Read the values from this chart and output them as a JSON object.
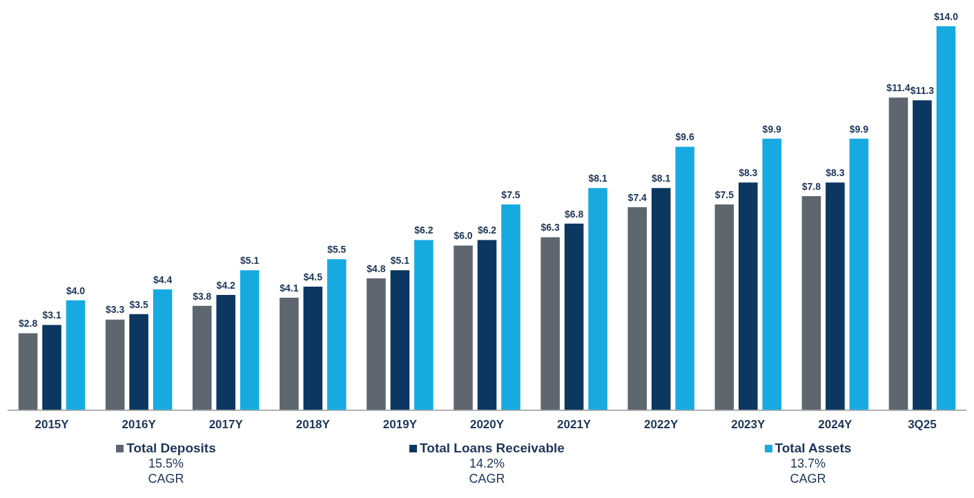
{
  "chart_data": {
    "type": "bar",
    "categories": [
      "2015Y",
      "2016Y",
      "2017Y",
      "2018Y",
      "2019Y",
      "2020Y",
      "2021Y",
      "2022Y",
      "2023Y",
      "2024Y",
      "3Q25"
    ],
    "series": [
      {
        "name": "Total Deposits",
        "color": "#5e6670",
        "values": [
          2.8,
          3.3,
          3.8,
          4.1,
          4.8,
          6.0,
          6.3,
          7.4,
          7.5,
          7.8,
          11.4
        ],
        "value_labels": [
          "$2.8",
          "$3.3",
          "$3.8",
          "$4.1",
          "$4.8",
          "$6.0",
          "$6.3",
          "$7.4",
          "$7.5",
          "$7.8",
          "$11.4"
        ]
      },
      {
        "name": "Total Loans Receivable",
        "color": "#0b3761",
        "values": [
          3.1,
          3.5,
          4.2,
          4.5,
          5.1,
          6.2,
          6.8,
          8.1,
          8.3,
          8.3,
          11.3
        ],
        "value_labels": [
          "$3.1",
          "$3.5",
          "$4.2",
          "$4.5",
          "$5.1",
          "$6.2",
          "$6.8",
          "$8.1",
          "$8.3",
          "$8.3",
          "$11.3"
        ]
      },
      {
        "name": "Total Assets",
        "color": "#17aae1",
        "values": [
          4.0,
          4.4,
          5.1,
          5.5,
          6.2,
          7.5,
          8.1,
          9.6,
          9.9,
          9.9,
          14.0
        ],
        "value_labels": [
          "$4.0",
          "$4.4",
          "$5.1",
          "$5.5",
          "$6.2",
          "$7.5",
          "$8.1",
          "$9.6",
          "$9.9",
          "$9.9",
          "$14.0"
        ]
      }
    ],
    "annotations": [
      "15.5% CAGR",
      "14.2% CAGR",
      "13.7% CAGR"
    ],
    "legend": "bottom",
    "grid": false,
    "tick_labels": "x"
  }
}
